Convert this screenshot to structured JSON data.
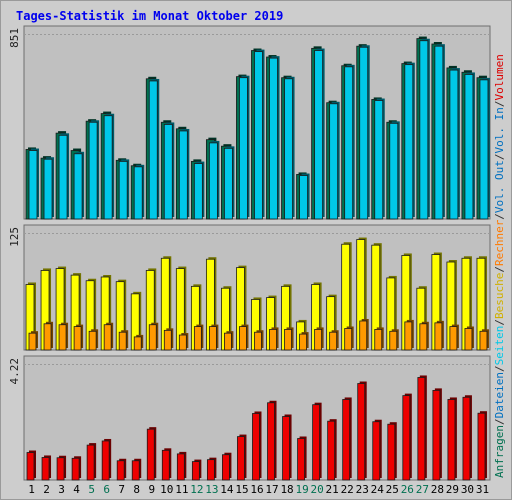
{
  "chart_data": [
    {
      "type": "bar",
      "title": "Tages-Statistik im Monat Oktober 2019",
      "panel": "top",
      "ylabel_tick": "851",
      "ymax": 851,
      "categories": [
        "1",
        "2",
        "3",
        "4",
        "5",
        "6",
        "7",
        "8",
        "9",
        "10",
        "11",
        "12",
        "13",
        "14",
        "15",
        "16",
        "17",
        "18",
        "19",
        "20",
        "21",
        "22",
        "23",
        "24",
        "25",
        "26",
        "27",
        "28",
        "29",
        "30",
        "31"
      ],
      "weekend_days": [
        "5",
        "6",
        "12",
        "13",
        "19",
        "20",
        "26",
        "27"
      ],
      "series": [
        {
          "name": "Anfragen",
          "color": "#007050",
          "values": [
            320,
            280,
            395,
            315,
            450,
            485,
            270,
            245,
            645,
            445,
            415,
            265,
            365,
            335,
            655,
            775,
            745,
            650,
            205,
            785,
            535,
            705,
            795,
            550,
            445,
            715,
            830,
            805,
            695,
            675,
            650
          ]
        },
        {
          "name": "Dateien",
          "color": "#00c8e8",
          "values": [
            315,
            275,
            385,
            300,
            445,
            475,
            265,
            240,
            635,
            435,
            405,
            255,
            350,
            325,
            650,
            770,
            740,
            645,
            200,
            775,
            530,
            700,
            790,
            545,
            440,
            710,
            820,
            795,
            685,
            665,
            640
          ]
        },
        {
          "name": "Seiten",
          "color": "#00e8e8",
          "values": [
            315,
            275,
            385,
            300,
            445,
            475,
            265,
            240,
            635,
            435,
            405,
            255,
            350,
            325,
            650,
            770,
            740,
            645,
            200,
            775,
            530,
            700,
            790,
            545,
            440,
            710,
            820,
            795,
            685,
            665,
            640
          ]
        }
      ]
    },
    {
      "type": "bar",
      "panel": "middle",
      "ylabel_tick": "125",
      "ymax": 125,
      "categories": [
        "1",
        "2",
        "3",
        "4",
        "5",
        "6",
        "7",
        "8",
        "9",
        "10",
        "11",
        "12",
        "13",
        "14",
        "15",
        "16",
        "17",
        "18",
        "19",
        "20",
        "21",
        "22",
        "23",
        "24",
        "25",
        "26",
        "27",
        "28",
        "29",
        "30",
        "31"
      ],
      "series": [
        {
          "name": "Besuche",
          "color": "#ffff00",
          "values": [
            70,
            85,
            87,
            80,
            74,
            78,
            73,
            60,
            85,
            98,
            87,
            68,
            97,
            66,
            88,
            54,
            56,
            68,
            30,
            70,
            57,
            113,
            118,
            112,
            77,
            101,
            66,
            102,
            94,
            98,
            98
          ]
        },
        {
          "name": "Rechner",
          "color": "#ff9a00",
          "values": [
            18,
            28,
            27,
            25,
            20,
            27,
            19,
            14,
            27,
            21,
            16,
            25,
            25,
            18,
            25,
            19,
            22,
            22,
            17,
            22,
            19,
            23,
            31,
            22,
            20,
            30,
            28,
            29,
            25,
            23,
            20
          ]
        }
      ]
    },
    {
      "type": "bar",
      "panel": "bottom",
      "ylabel_tick": "4.22",
      "ymax": 4.22,
      "categories": [
        "1",
        "2",
        "3",
        "4",
        "5",
        "6",
        "7",
        "8",
        "9",
        "10",
        "11",
        "12",
        "13",
        "14",
        "15",
        "16",
        "17",
        "18",
        "19",
        "20",
        "21",
        "22",
        "23",
        "24",
        "25",
        "26",
        "27",
        "28",
        "29",
        "30",
        "31"
      ],
      "series": [
        {
          "name": "Volumen",
          "color": "#ee0000",
          "values": [
            1.0,
            0.82,
            0.81,
            0.79,
            1.27,
            1.42,
            0.7,
            0.7,
            1.85,
            1.08,
            0.95,
            0.67,
            0.74,
            0.92,
            1.58,
            2.42,
            2.81,
            2.31,
            1.51,
            2.74,
            2.14,
            2.93,
            3.51,
            2.12,
            2.03,
            3.07,
            3.73,
            3.26,
            2.93,
            3.01,
            2.43
          ]
        }
      ]
    }
  ],
  "legend": {
    "top": [
      {
        "text": "Anfragen",
        "color": "#007050"
      },
      {
        "text": "/",
        "color": "#333333"
      },
      {
        "text": "Dateien",
        "color": "#0070c0"
      },
      {
        "text": "/",
        "color": "#333333"
      },
      {
        "text": "Seiten",
        "color": "#00c8e8"
      },
      {
        "text": "/",
        "color": "#333333"
      },
      {
        "text": "Besuche",
        "color": "#d0b000"
      },
      {
        "text": "/",
        "color": "#333333"
      },
      {
        "text": "Rechner",
        "color": "#ff7a00"
      },
      {
        "text": "/",
        "color": "#333333"
      },
      {
        "text": "Vol. Out",
        "color": "#0070c0"
      },
      {
        "text": "/",
        "color": "#333333"
      },
      {
        "text": "Vol. In",
        "color": "#0070c0"
      },
      {
        "text": "/",
        "color": "#333333"
      },
      {
        "text": "Volumen",
        "color": "#dd0000"
      }
    ]
  },
  "colors": {
    "weekend_tick": "#007050",
    "weekday_tick": "#000000",
    "panel_bg": "#c0c0c0"
  }
}
